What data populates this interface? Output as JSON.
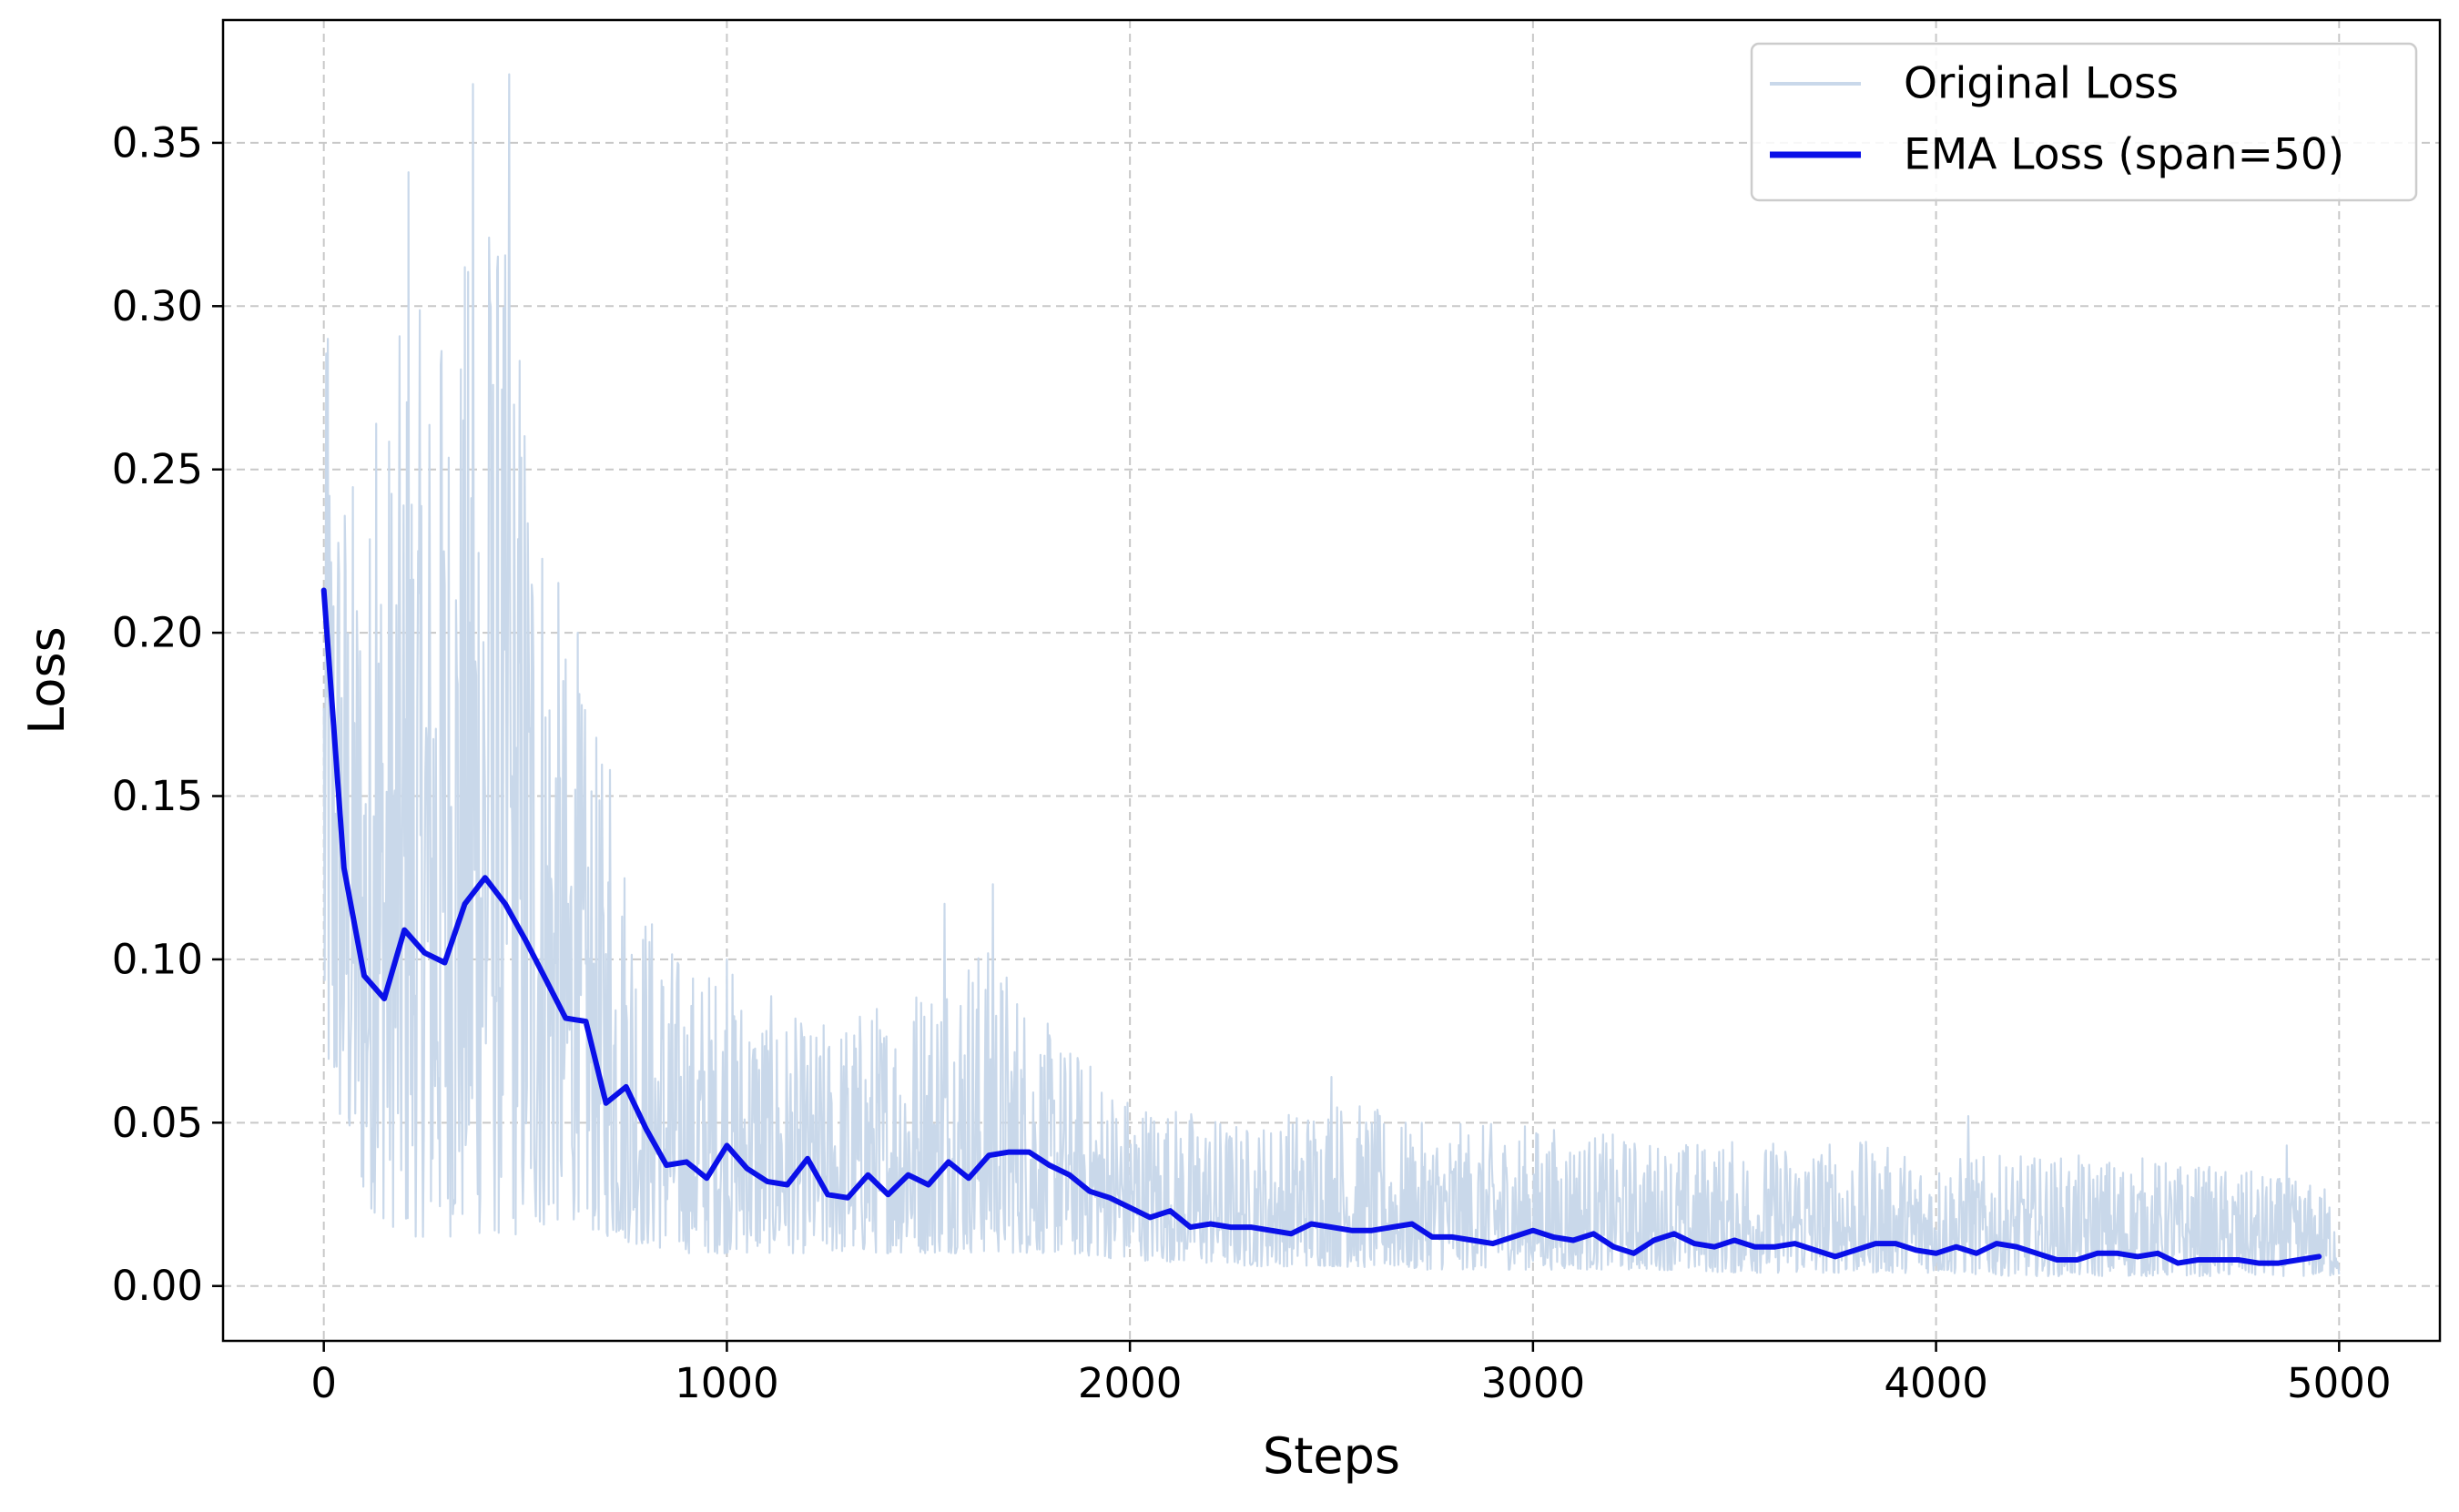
{
  "chart_data": {
    "type": "line",
    "title": "",
    "xlabel": "Steps",
    "ylabel": "Loss",
    "xlim": [
      -250,
      5250
    ],
    "ylim": [
      -0.0168,
      0.3876
    ],
    "xticks": [
      0,
      1000,
      2000,
      3000,
      4000,
      5000
    ],
    "xtick_labels": [
      "0",
      "1000",
      "2000",
      "3000",
      "4000",
      "5000"
    ],
    "yticks": [
      0.0,
      0.05,
      0.1,
      0.15,
      0.2,
      0.25,
      0.3,
      0.35
    ],
    "ytick_labels": [
      "0.00",
      "0.05",
      "0.10",
      "0.15",
      "0.20",
      "0.25",
      "0.30",
      "0.35"
    ],
    "grid": true,
    "legend_position": "top-right",
    "colors": {
      "original": "#c9d8ea",
      "ema": "#0a10e8",
      "grid": "#c8c8c8",
      "legend_border": "#cccccc"
    },
    "series": [
      {
        "name": "Original Loss",
        "style": "noisy-band",
        "x": [
          0,
          100,
          200,
          300,
          400,
          500,
          600,
          700,
          800,
          900,
          1000,
          1200,
          1400,
          1600,
          1700,
          1800,
          2000,
          2300,
          2500,
          2700,
          3000,
          3300,
          3500,
          3800,
          4000,
          4200,
          4500,
          4800,
          5000
        ],
        "lower": [
          0.06,
          0.025,
          0.015,
          0.015,
          0.015,
          0.015,
          0.02,
          0.015,
          0.012,
          0.01,
          0.01,
          0.01,
          0.01,
          0.01,
          0.01,
          0.01,
          0.008,
          0.006,
          0.006,
          0.005,
          0.005,
          0.005,
          0.004,
          0.004,
          0.004,
          0.003,
          0.003,
          0.003,
          0.003
        ],
        "upper": [
          0.29,
          0.24,
          0.3,
          0.3,
          0.34,
          0.3,
          0.2,
          0.16,
          0.12,
          0.1,
          0.1,
          0.08,
          0.09,
          0.11,
          0.1,
          0.08,
          0.06,
          0.05,
          0.06,
          0.05,
          0.05,
          0.045,
          0.045,
          0.045,
          0.04,
          0.04,
          0.04,
          0.035,
          0.03
        ],
        "spikes": [
          {
            "x": 10,
            "y": 0.29
          },
          {
            "x": 130,
            "y": 0.264
          },
          {
            "x": 210,
            "y": 0.341
          },
          {
            "x": 290,
            "y": 0.282
          },
          {
            "x": 370,
            "y": 0.368
          },
          {
            "x": 410,
            "y": 0.321
          },
          {
            "x": 430,
            "y": 0.311
          },
          {
            "x": 460,
            "y": 0.371
          },
          {
            "x": 630,
            "y": 0.2
          },
          {
            "x": 710,
            "y": 0.158
          },
          {
            "x": 1000,
            "y": 0.1
          },
          {
            "x": 1540,
            "y": 0.117
          },
          {
            "x": 1660,
            "y": 0.123
          },
          {
            "x": 2500,
            "y": 0.064
          },
          {
            "x": 4080,
            "y": 0.052
          },
          {
            "x": 4870,
            "y": 0.043
          }
        ]
      },
      {
        "name": "EMA Loss (span=50)",
        "x": [
          0,
          50,
          100,
          150,
          200,
          250,
          300,
          350,
          400,
          450,
          500,
          550,
          600,
          650,
          700,
          750,
          800,
          850,
          900,
          950,
          1000,
          1050,
          1100,
          1150,
          1200,
          1250,
          1300,
          1350,
          1400,
          1450,
          1500,
          1550,
          1600,
          1650,
          1700,
          1750,
          1800,
          1850,
          1900,
          1950,
          2000,
          2050,
          2100,
          2150,
          2200,
          2250,
          2300,
          2350,
          2400,
          2450,
          2500,
          2550,
          2600,
          2650,
          2700,
          2750,
          2800,
          2850,
          2900,
          2950,
          3000,
          3050,
          3100,
          3150,
          3200,
          3250,
          3300,
          3350,
          3400,
          3450,
          3500,
          3550,
          3600,
          3650,
          3700,
          3750,
          3800,
          3850,
          3900,
          3950,
          4000,
          4050,
          4100,
          4150,
          4200,
          4250,
          4300,
          4350,
          4400,
          4450,
          4500,
          4550,
          4600,
          4650,
          4700,
          4750,
          4800,
          4850,
          4900,
          4950
        ],
        "values": [
          0.213,
          0.128,
          0.095,
          0.088,
          0.109,
          0.102,
          0.099,
          0.117,
          0.125,
          0.117,
          0.106,
          0.094,
          0.082,
          0.081,
          0.056,
          0.061,
          0.048,
          0.037,
          0.038,
          0.033,
          0.043,
          0.036,
          0.032,
          0.031,
          0.039,
          0.028,
          0.027,
          0.034,
          0.028,
          0.034,
          0.031,
          0.038,
          0.033,
          0.04,
          0.041,
          0.041,
          0.037,
          0.034,
          0.029,
          0.027,
          0.024,
          0.021,
          0.023,
          0.018,
          0.019,
          0.018,
          0.018,
          0.017,
          0.016,
          0.019,
          0.018,
          0.017,
          0.017,
          0.018,
          0.019,
          0.015,
          0.015,
          0.014,
          0.013,
          0.015,
          0.017,
          0.015,
          0.014,
          0.016,
          0.012,
          0.01,
          0.014,
          0.016,
          0.013,
          0.012,
          0.014,
          0.012,
          0.012,
          0.013,
          0.011,
          0.009,
          0.011,
          0.013,
          0.013,
          0.011,
          0.01,
          0.012,
          0.01,
          0.013,
          0.012,
          0.01,
          0.008,
          0.008,
          0.01,
          0.01,
          0.009,
          0.01,
          0.007,
          0.008,
          0.008,
          0.008,
          0.007,
          0.007,
          0.008,
          0.009
        ]
      }
    ]
  }
}
